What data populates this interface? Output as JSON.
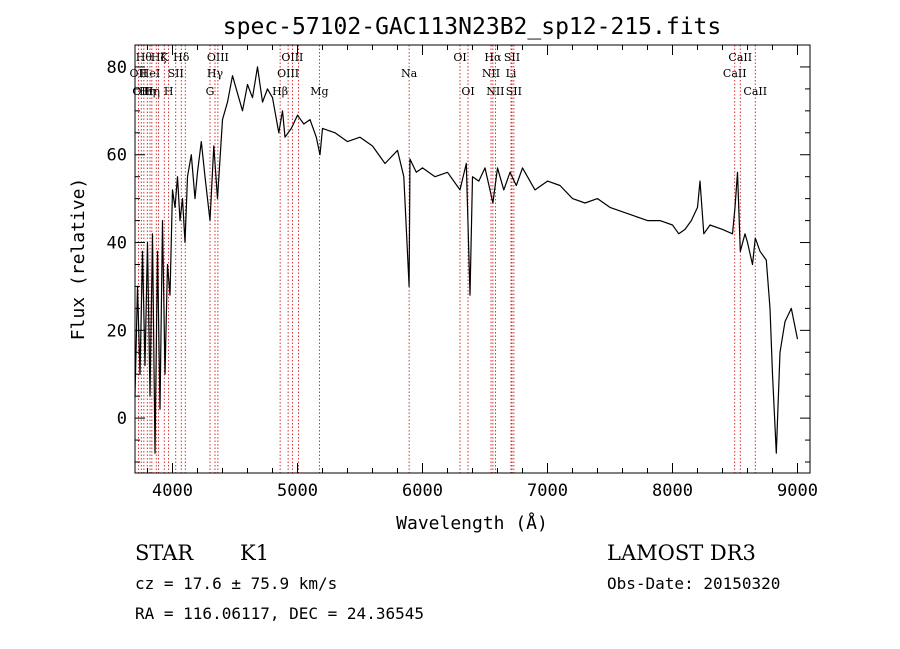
{
  "chart_data": {
    "type": "line",
    "title": "spec-57102-GAC113N23B2_sp12-215.fits",
    "xlabel": "Wavelength (Å)",
    "ylabel": "Flux (relative)",
    "xlim": [
      3700,
      9100
    ],
    "ylim": [
      -12.5,
      85
    ],
    "xticks": [
      4000,
      5000,
      6000,
      7000,
      8000,
      9000
    ],
    "yticks": [
      0,
      20,
      40,
      60,
      80
    ],
    "grid": false,
    "series": [
      {
        "x": [
          3700,
          3720,
          3740,
          3760,
          3780,
          3800,
          3820,
          3840,
          3860,
          3880,
          3900,
          3920,
          3940,
          3960,
          3980,
          4000,
          4020,
          4040,
          4060,
          4080,
          4100,
          4120,
          4150,
          4180,
          4200,
          4230,
          4260,
          4300,
          4330,
          4360,
          4400,
          4440,
          4480,
          4520,
          4560,
          4600,
          4640,
          4680,
          4720,
          4760,
          4800,
          4850,
          4880,
          4900,
          4950,
          5000,
          5050,
          5100,
          5150,
          5180,
          5200,
          5300,
          5400,
          5500,
          5600,
          5700,
          5800,
          5850,
          5893,
          5900,
          5950,
          6000,
          6100,
          6200,
          6300,
          6350,
          6380,
          6400,
          6450,
          6500,
          6563,
          6600,
          6650,
          6700,
          6750,
          6800,
          6900,
          7000,
          7100,
          7200,
          7300,
          7400,
          7500,
          7600,
          7700,
          7800,
          7900,
          8000,
          8050,
          8100,
          8150,
          8200,
          8220,
          8250,
          8300,
          8400,
          8480,
          8500,
          8520,
          8542,
          8580,
          8600,
          8640,
          8662,
          8700,
          8750,
          8780,
          8800,
          8830,
          8860,
          8900,
          8950,
          9000
        ],
        "y": [
          5,
          30,
          10,
          38,
          12,
          40,
          5,
          42,
          -8,
          38,
          2,
          45,
          10,
          35,
          28,
          52,
          48,
          55,
          45,
          50,
          40,
          55,
          60,
          50,
          56,
          63,
          55,
          45,
          62,
          50,
          68,
          72,
          78,
          74,
          70,
          76,
          73,
          80,
          72,
          75,
          73,
          65,
          70,
          64,
          66,
          69,
          67,
          68,
          64,
          60,
          66,
          65,
          63,
          64,
          62,
          58,
          61,
          55,
          30,
          59,
          56,
          57,
          55,
          56,
          52,
          58,
          28,
          55,
          54,
          57,
          49,
          57,
          52,
          56,
          53,
          57,
          52,
          54,
          53,
          50,
          49,
          50,
          48,
          47,
          46,
          45,
          45,
          44,
          42,
          43,
          45,
          48,
          54,
          42,
          44,
          43,
          42,
          48,
          56,
          38,
          42,
          40,
          35,
          41,
          38,
          36,
          25,
          10,
          -8,
          15,
          22,
          25,
          18
        ]
      }
    ],
    "line_markers": [
      {
        "x": 3727,
        "label": "OII",
        "row": 2
      },
      {
        "x": 3750,
        "label": "OII",
        "row": 3
      },
      {
        "x": 3771,
        "label": "Hθ",
        "row": 1
      },
      {
        "x": 3798,
        "label": "Hη",
        "row": 3
      },
      {
        "x": 3820,
        "label": "HeI",
        "row": 2
      },
      {
        "x": 3835,
        "label": "Hη",
        "row": 3
      },
      {
        "x": 3870,
        "label": "",
        "row": 0
      },
      {
        "x": 3889,
        "label": "Hζ",
        "row": 1
      },
      {
        "x": 3934,
        "label": "K",
        "row": 1
      },
      {
        "x": 3969,
        "label": "H",
        "row": 3
      },
      {
        "x": 4026,
        "label": "SII",
        "row": 2
      },
      {
        "x": 4070,
        "label": "Hδ",
        "row": 1
      },
      {
        "x": 4102,
        "label": "",
        "row": 0
      },
      {
        "x": 4300,
        "label": "G",
        "row": 3
      },
      {
        "x": 4340,
        "label": "Hγ",
        "row": 2
      },
      {
        "x": 4363,
        "label": "OIII",
        "row": 1
      },
      {
        "x": 4861,
        "label": "Hβ",
        "row": 3
      },
      {
        "x": 4925,
        "label": "OIII",
        "row": 2
      },
      {
        "x": 4959,
        "label": "OIII",
        "row": 1
      },
      {
        "x": 5007,
        "label": "",
        "row": 0
      },
      {
        "x": 5175,
        "label": "Mg",
        "row": 3
      },
      {
        "x": 5893,
        "label": "Na",
        "row": 2
      },
      {
        "x": 6300,
        "label": "OI",
        "row": 1
      },
      {
        "x": 6364,
        "label": "OI",
        "row": 3
      },
      {
        "x": 6548,
        "label": "NII",
        "row": 2
      },
      {
        "x": 6563,
        "label": "Hα",
        "row": 1
      },
      {
        "x": 6583,
        "label": "NII",
        "row": 3
      },
      {
        "x": 6708,
        "label": "Li",
        "row": 2
      },
      {
        "x": 6716,
        "label": "SII",
        "row": 1
      },
      {
        "x": 6731,
        "label": "SII",
        "row": 3
      },
      {
        "x": 8498,
        "label": "CaII",
        "row": 2
      },
      {
        "x": 8542,
        "label": "CaII",
        "row": 1
      },
      {
        "x": 8662,
        "label": "CaII",
        "row": 3
      }
    ]
  },
  "info": {
    "class_label": "STAR",
    "subclass_label": "K1",
    "survey": "LAMOST DR3",
    "redshift_text": "cz = 17.6 ± 75.9 km/s",
    "obs_date": "Obs-Date: 20150320",
    "coords": "RA = 116.06117, DEC =  24.36545"
  },
  "colors": {
    "spectrum": "#000000",
    "marker": "#cc0000",
    "axes": "#000000"
  }
}
